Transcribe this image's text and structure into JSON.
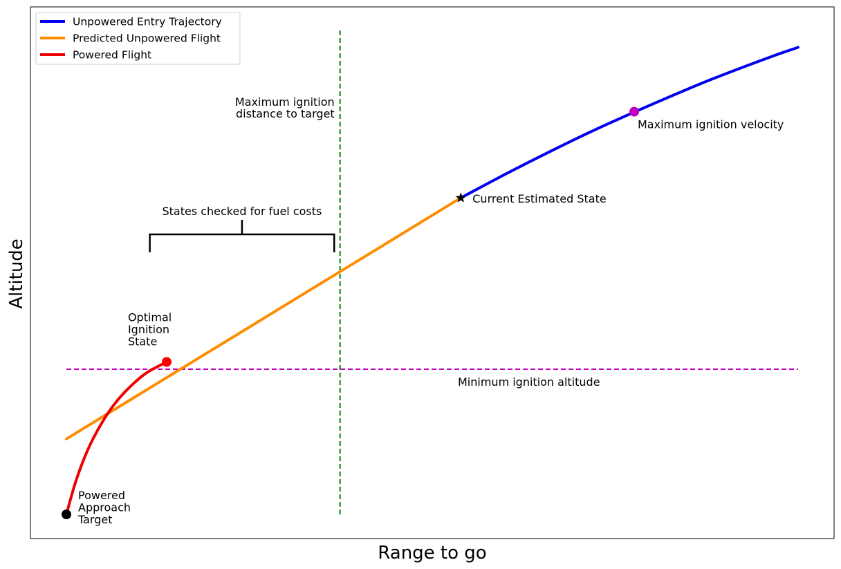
{
  "chart_data": {
    "type": "line",
    "xlabel": "Range to go",
    "ylabel": "Altitude",
    "xlim": [
      0,
      1
    ],
    "ylim": [
      0,
      1
    ],
    "ticks_shown": false,
    "grid": false,
    "legend_position": "top-left",
    "series": [
      {
        "name": "Unpowered Entry Trajectory",
        "color": "#0000ee",
        "x": [
          0.539,
          0.6,
          0.66,
          0.72,
          0.8,
          0.88,
          0.96,
          1.0
        ],
        "y": [
          0.654,
          0.703,
          0.749,
          0.793,
          0.847,
          0.898,
          0.944,
          0.965
        ]
      },
      {
        "name": "Predicted Unpowered Flight",
        "color": "#ff8c00",
        "x": [
          0.0,
          0.539
        ],
        "y": [
          0.156,
          0.654
        ]
      },
      {
        "name": "Powered Flight",
        "color": "#ee0000",
        "x": [
          0.0,
          0.013,
          0.03,
          0.05,
          0.07,
          0.09,
          0.11,
          0.137
        ],
        "y": [
          0.0,
          0.069,
          0.136,
          0.193,
          0.236,
          0.268,
          0.293,
          0.315
        ]
      }
    ],
    "markers": [
      {
        "label": "Powered\nApproach\nTarget",
        "x": 0.0,
        "y": 0.0,
        "shape": "circle",
        "color": "#000000"
      },
      {
        "label": "Optimal\nIgnition\nState",
        "x": 0.137,
        "y": 0.315,
        "shape": "circle",
        "color": "#ff0000"
      },
      {
        "label": "Current Estimated State",
        "x": 0.539,
        "y": 0.654,
        "shape": "star",
        "color": "#000000"
      },
      {
        "label": "Maximum ignition velocity",
        "x": 0.776,
        "y": 0.832,
        "shape": "circle",
        "color": "#c000c0"
      }
    ],
    "reference_lines": [
      {
        "label": "Minimum ignition altitude",
        "orientation": "horizontal",
        "value": 0.3,
        "color": "#c000c0",
        "style": "dashed"
      },
      {
        "label": "Maximum ignition\ndistance to target",
        "orientation": "vertical",
        "value": 0.374,
        "color": "#008800",
        "style": "dashed"
      }
    ],
    "bracket": {
      "label": "States checked for fuel costs",
      "x_start": 0.114,
      "x_end": 0.366
    },
    "legend": [
      "Unpowered Entry Trajectory",
      "Predicted Unpowered Flight",
      "Powered Flight"
    ]
  }
}
